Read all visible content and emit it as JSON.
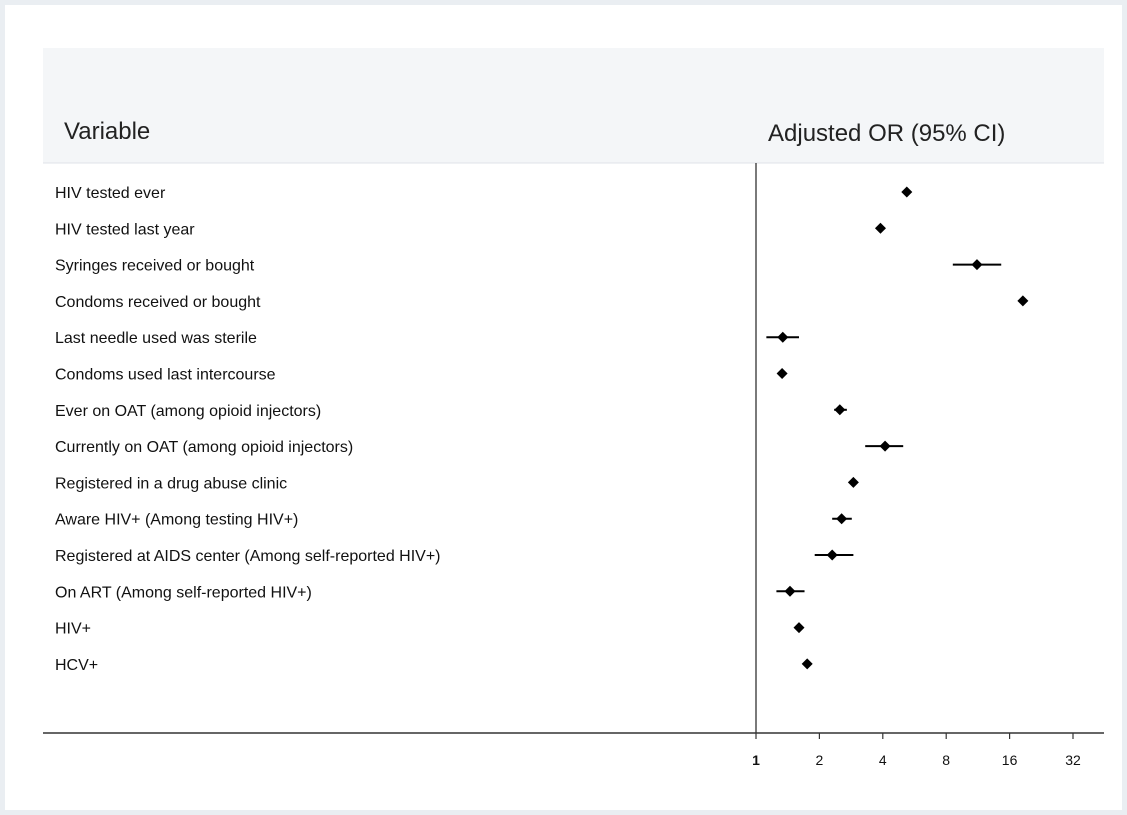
{
  "chart_data": {
    "type": "forest",
    "header": {
      "left": "Variable",
      "right": "Adjusted OR (95% CI)"
    },
    "x_scale": "log2",
    "xlim": [
      1,
      40
    ],
    "x_ticks": [
      1,
      2,
      4,
      8,
      16,
      32
    ],
    "x_tick_labels": [
      "1",
      "2",
      "4",
      "8",
      "16",
      "32"
    ],
    "reference_line": 1,
    "rows": [
      {
        "label": "HIV tested ever",
        "or": 5.2,
        "lo": 5.0,
        "hi": 5.4
      },
      {
        "label": "HIV tested last year",
        "or": 3.9,
        "lo": 3.8,
        "hi": 4.1
      },
      {
        "label": "Syringes received or bought",
        "or": 11.2,
        "lo": 8.6,
        "hi": 14.6
      },
      {
        "label": "Condoms received or bought",
        "or": 18.5,
        "lo": 18.0,
        "hi": 19.0
      },
      {
        "label": "Last needle used was sterile",
        "or": 1.34,
        "lo": 1.12,
        "hi": 1.6
      },
      {
        "label": "Condoms used last intercourse",
        "or": 1.33,
        "lo": 1.3,
        "hi": 1.37
      },
      {
        "label": "Ever on OAT (among opioid injectors)",
        "or": 2.5,
        "lo": 2.35,
        "hi": 2.7
      },
      {
        "label": "Currently on OAT (among opioid injectors)",
        "or": 4.1,
        "lo": 3.3,
        "hi": 5.0
      },
      {
        "label": "Registered in a drug abuse clinic",
        "or": 2.9,
        "lo": 2.8,
        "hi": 3.0
      },
      {
        "label": "Aware HIV+ (Among testing HIV+)",
        "or": 2.55,
        "lo": 2.3,
        "hi": 2.85
      },
      {
        "label": "Registered at AIDS center (Among self-reported HIV+)",
        "or": 2.3,
        "lo": 1.9,
        "hi": 2.9
      },
      {
        "label": "On ART (Among self-reported HIV+)",
        "or": 1.45,
        "lo": 1.25,
        "hi": 1.7
      },
      {
        "label": "HIV+",
        "or": 1.6,
        "lo": 1.55,
        "hi": 1.65
      },
      {
        "label": "HCV+",
        "or": 1.75,
        "lo": 1.7,
        "hi": 1.8
      }
    ]
  }
}
